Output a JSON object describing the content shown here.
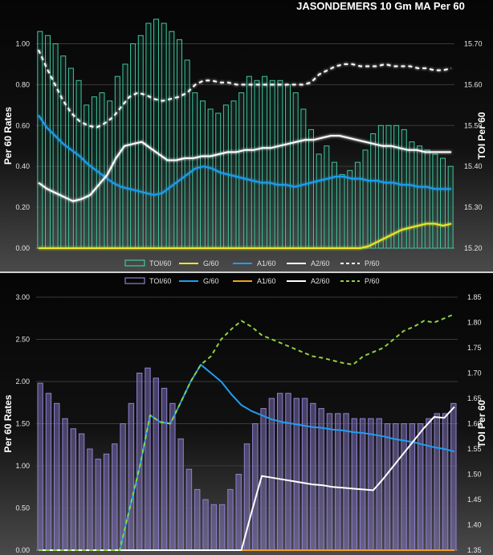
{
  "chart_data": [
    {
      "type": "bar+line",
      "title": "JASONDEMERS 10 Gm MA Per 60",
      "ylabel": "Per 60 Rates",
      "y2label": "TOI Per 60",
      "ylim": [
        0,
        1.1
      ],
      "y2lim": [
        15.2,
        15.75
      ],
      "yticks": [
        "0.00",
        "0.20",
        "0.40",
        "0.60",
        "0.80",
        "1.00"
      ],
      "y2ticks": [
        "15.20",
        "15.30",
        "15.40",
        "15.50",
        "15.60",
        "15.70"
      ],
      "legend_position": "bottom",
      "series": [
        {
          "name": "TOI/60",
          "kind": "bar",
          "axis": "right",
          "color": "#3ec8a0",
          "values": [
            15.73,
            15.72,
            15.7,
            15.67,
            15.64,
            15.61,
            15.55,
            15.57,
            15.58,
            15.56,
            15.62,
            15.65,
            15.7,
            15.72,
            15.75,
            15.76,
            15.75,
            15.73,
            15.71,
            15.66,
            15.58,
            15.56,
            15.54,
            15.53,
            15.55,
            15.56,
            15.58,
            15.62,
            15.61,
            15.62,
            15.61,
            15.61,
            15.6,
            15.58,
            15.54,
            15.49,
            15.43,
            15.45,
            15.41,
            15.38,
            15.39,
            15.41,
            15.44,
            15.48,
            15.5,
            15.5,
            15.5,
            15.49,
            15.46,
            15.45,
            15.44,
            15.43,
            15.42,
            15.4
          ]
        },
        {
          "name": "G/60",
          "kind": "line",
          "axis": "left",
          "color": "#e8e82a",
          "style": "solid",
          "values": [
            0,
            0,
            0,
            0,
            0,
            0,
            0,
            0,
            0,
            0,
            0,
            0,
            0,
            0,
            0,
            0,
            0,
            0,
            0,
            0,
            0,
            0,
            0,
            0,
            0,
            0,
            0,
            0,
            0,
            0,
            0,
            0,
            0,
            0,
            0,
            0,
            0,
            0,
            0,
            0,
            0.01,
            0.03,
            0.05,
            0.07,
            0.09,
            0.1,
            0.11,
            0.12,
            0.12,
            0.11,
            0.12
          ]
        },
        {
          "name": "A1/60",
          "kind": "line",
          "axis": "left",
          "color": "#1f9ef0",
          "style": "solid",
          "values": [
            0.65,
            0.59,
            0.55,
            0.51,
            0.48,
            0.45,
            0.41,
            0.38,
            0.35,
            0.32,
            0.3,
            0.29,
            0.28,
            0.27,
            0.26,
            0.27,
            0.3,
            0.33,
            0.36,
            0.39,
            0.4,
            0.39,
            0.37,
            0.36,
            0.35,
            0.34,
            0.33,
            0.32,
            0.32,
            0.31,
            0.31,
            0.3,
            0.31,
            0.32,
            0.33,
            0.34,
            0.35,
            0.35,
            0.34,
            0.34,
            0.33,
            0.33,
            0.32,
            0.32,
            0.31,
            0.31,
            0.3,
            0.3,
            0.29,
            0.29,
            0.29
          ]
        },
        {
          "name": "A2/60",
          "kind": "line",
          "axis": "left",
          "color": "#ffffff",
          "style": "solid",
          "values": [
            0.32,
            0.29,
            0.27,
            0.25,
            0.23,
            0.24,
            0.26,
            0.31,
            0.36,
            0.44,
            0.5,
            0.51,
            0.52,
            0.49,
            0.46,
            0.43,
            0.43,
            0.44,
            0.44,
            0.45,
            0.45,
            0.46,
            0.47,
            0.47,
            0.48,
            0.48,
            0.49,
            0.49,
            0.5,
            0.51,
            0.52,
            0.53,
            0.53,
            0.54,
            0.55,
            0.55,
            0.54,
            0.53,
            0.52,
            0.51,
            0.5,
            0.5,
            0.49,
            0.48,
            0.48,
            0.47,
            0.47,
            0.47,
            0.47
          ]
        },
        {
          "name": "P/60",
          "kind": "line",
          "axis": "left",
          "color": "#ffffff",
          "style": "dashed",
          "values": [
            0.97,
            0.88,
            0.8,
            0.72,
            0.66,
            0.62,
            0.6,
            0.59,
            0.61,
            0.64,
            0.69,
            0.74,
            0.76,
            0.75,
            0.73,
            0.72,
            0.73,
            0.74,
            0.76,
            0.8,
            0.82,
            0.82,
            0.81,
            0.81,
            0.8,
            0.8,
            0.8,
            0.8,
            0.8,
            0.8,
            0.8,
            0.8,
            0.8,
            0.81,
            0.85,
            0.87,
            0.89,
            0.9,
            0.9,
            0.89,
            0.89,
            0.89,
            0.9,
            0.89,
            0.89,
            0.89,
            0.88,
            0.88,
            0.87,
            0.87,
            0.88
          ]
        }
      ]
    },
    {
      "type": "bar+line",
      "title": "",
      "ylabel": "Per 60 Rates",
      "y2label": "TOI Per 60",
      "ylim": [
        0,
        3.0
      ],
      "y2lim": [
        1.35,
        1.85
      ],
      "yticks": [
        "0.00",
        "0.50",
        "1.00",
        "1.50",
        "2.00",
        "2.50",
        "3.00"
      ],
      "y2ticks": [
        "1.35",
        "1.40",
        "1.45",
        "1.50",
        "1.55",
        "1.60",
        "1.65",
        "1.70",
        "1.75",
        "1.80",
        "1.85"
      ],
      "legend_position": "top",
      "series": [
        {
          "name": "TOI/60",
          "kind": "bar",
          "axis": "right",
          "color": "#8e7fd0",
          "values": [
            1.68,
            1.66,
            1.64,
            1.61,
            1.59,
            1.58,
            1.55,
            1.53,
            1.54,
            1.56,
            1.6,
            1.64,
            1.7,
            1.71,
            1.69,
            1.67,
            1.64,
            1.57,
            1.51,
            1.47,
            1.45,
            1.44,
            1.44,
            1.47,
            1.5,
            1.56,
            1.6,
            1.63,
            1.65,
            1.66,
            1.66,
            1.65,
            1.65,
            1.64,
            1.63,
            1.62,
            1.62,
            1.62,
            1.61,
            1.61,
            1.61,
            1.61,
            1.6,
            1.6,
            1.6,
            1.6,
            1.6,
            1.61,
            1.62,
            1.62,
            1.64
          ]
        },
        {
          "name": "G/60",
          "kind": "line",
          "axis": "left",
          "color": "#1f9ef0",
          "style": "solid",
          "values": [
            0,
            0,
            0,
            0,
            0,
            0,
            0,
            0,
            0,
            0.5,
            1.0,
            1.6,
            1.52,
            1.5,
            1.75,
            2.0,
            2.2,
            2.1,
            2.0,
            1.85,
            1.72,
            1.65,
            1.6,
            1.55,
            1.52,
            1.5,
            1.48,
            1.46,
            1.45,
            1.43,
            1.42,
            1.4,
            1.39,
            1.37,
            1.35,
            1.32,
            1.3,
            1.28,
            1.25,
            1.22,
            1.2,
            1.17
          ]
        },
        {
          "name": "A1/60",
          "kind": "line",
          "axis": "left",
          "color": "#f0a020",
          "style": "solid",
          "values": [
            0,
            0,
            0,
            0,
            0,
            0,
            0,
            0,
            0,
            0,
            0,
            0,
            0,
            0,
            0,
            0,
            0,
            0,
            0,
            0,
            0,
            0,
            0,
            0,
            0,
            0,
            0,
            0,
            0,
            0,
            0,
            0,
            0,
            0,
            0,
            0,
            0,
            0,
            0,
            0,
            0,
            0
          ]
        },
        {
          "name": "A2/60",
          "kind": "line",
          "axis": "left",
          "color": "#ffffff",
          "style": "solid",
          "values": [
            0,
            0,
            0,
            0,
            0,
            0,
            0,
            0,
            0,
            0,
            0,
            0,
            0,
            0,
            0,
            0,
            0,
            0,
            0,
            0,
            0,
            0.45,
            0.88,
            0.86,
            0.84,
            0.82,
            0.8,
            0.78,
            0.77,
            0.75,
            0.74,
            0.73,
            0.72,
            0.71,
            0.85,
            1.0,
            1.15,
            1.3,
            1.45,
            1.58,
            1.57,
            1.7
          ]
        },
        {
          "name": "P/60",
          "kind": "line",
          "axis": "left",
          "color": "#8fd040",
          "style": "dashed",
          "values": [
            0,
            0,
            0,
            0,
            0,
            0,
            0,
            0,
            0,
            0.5,
            1.0,
            1.6,
            1.52,
            1.5,
            1.75,
            2.0,
            2.2,
            2.3,
            2.5,
            2.62,
            2.72,
            2.65,
            2.55,
            2.5,
            2.45,
            2.4,
            2.35,
            2.3,
            2.28,
            2.25,
            2.22,
            2.2,
            2.3,
            2.35,
            2.4,
            2.5,
            2.6,
            2.65,
            2.72,
            2.7,
            2.75,
            2.8
          ]
        }
      ]
    }
  ]
}
